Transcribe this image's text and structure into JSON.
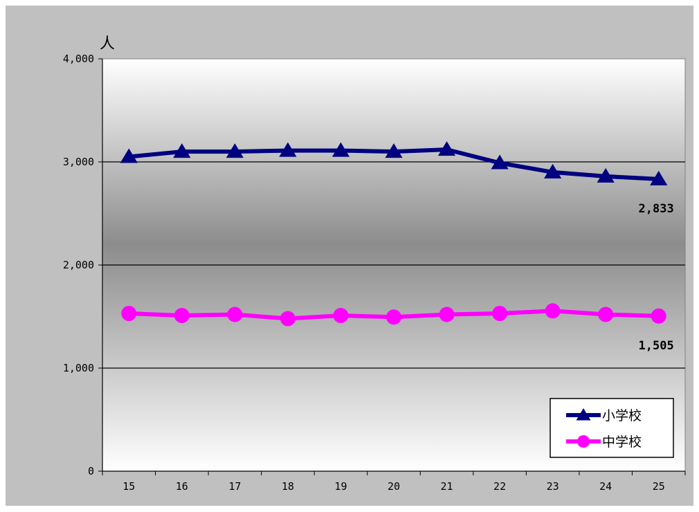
{
  "chart_data": {
    "type": "line",
    "title": "",
    "xlabel": "",
    "ylabel": "人",
    "categories": [
      "15",
      "16",
      "17",
      "18",
      "19",
      "20",
      "21",
      "22",
      "23",
      "24",
      "25"
    ],
    "ylim": [
      0,
      4000
    ],
    "yticks": [
      "0",
      "1,000",
      "2,000",
      "3,000",
      "4,000"
    ],
    "grid": true,
    "legend_position": "bottom-right",
    "series": [
      {
        "name": "小学校",
        "values": [
          3050,
          3100,
          3100,
          3110,
          3110,
          3100,
          3120,
          2990,
          2900,
          2860,
          2833
        ],
        "color": "#000080",
        "marker": "triangle",
        "end_label": "2,833"
      },
      {
        "name": "中学校",
        "values": [
          1530,
          1510,
          1520,
          1480,
          1510,
          1495,
          1520,
          1530,
          1555,
          1520,
          1505
        ],
        "color": "#ff00ff",
        "marker": "circle",
        "end_label": "1,505"
      }
    ]
  }
}
